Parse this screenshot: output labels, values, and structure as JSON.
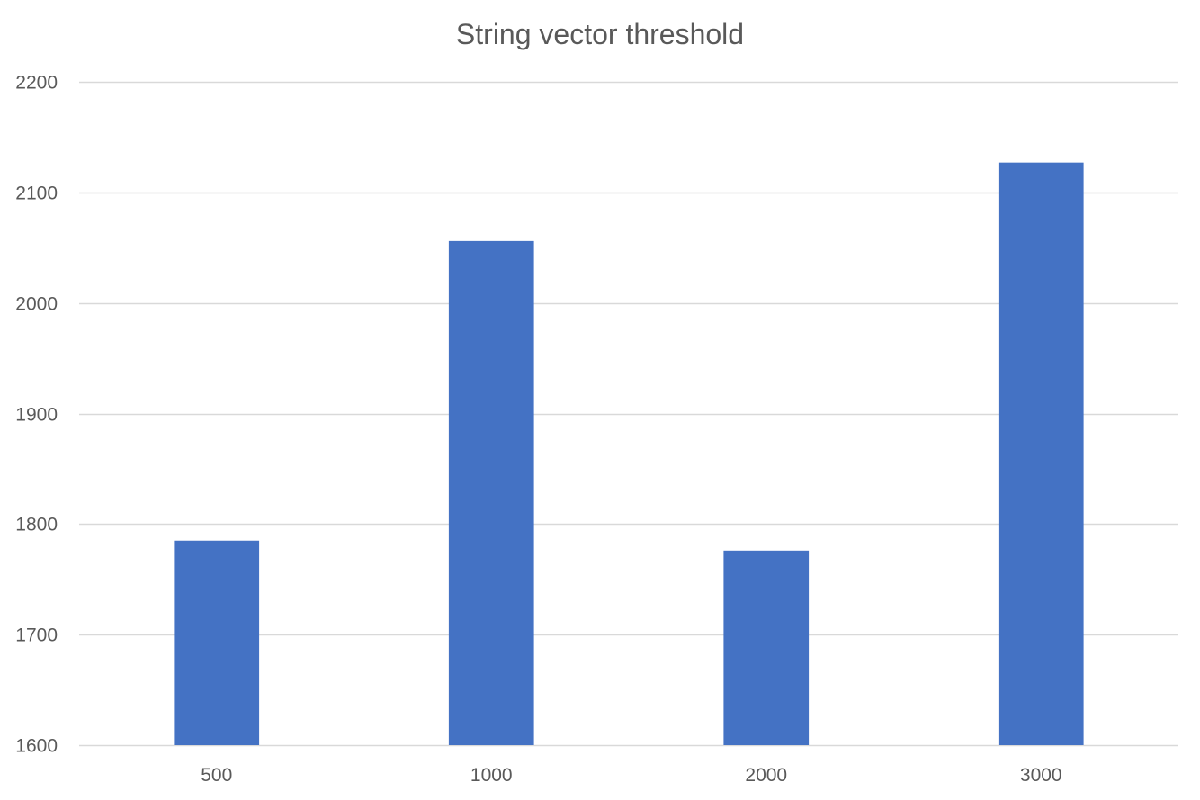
{
  "chart_data": {
    "type": "bar",
    "title": "String vector threshold",
    "xlabel": "",
    "ylabel": "",
    "categories": [
      "500",
      "1000",
      "2000",
      "3000"
    ],
    "series": [
      {
        "values": [
          1785,
          2056,
          1776,
          2127
        ]
      }
    ],
    "ylim": [
      1600,
      2200
    ],
    "yticks": [
      1600,
      1700,
      1800,
      1900,
      2000,
      2100,
      2200
    ],
    "grid": true,
    "legend": "none",
    "colors": {
      "bar": "#4472C4",
      "grid": "#D9D9D9",
      "text": "#595959"
    }
  }
}
